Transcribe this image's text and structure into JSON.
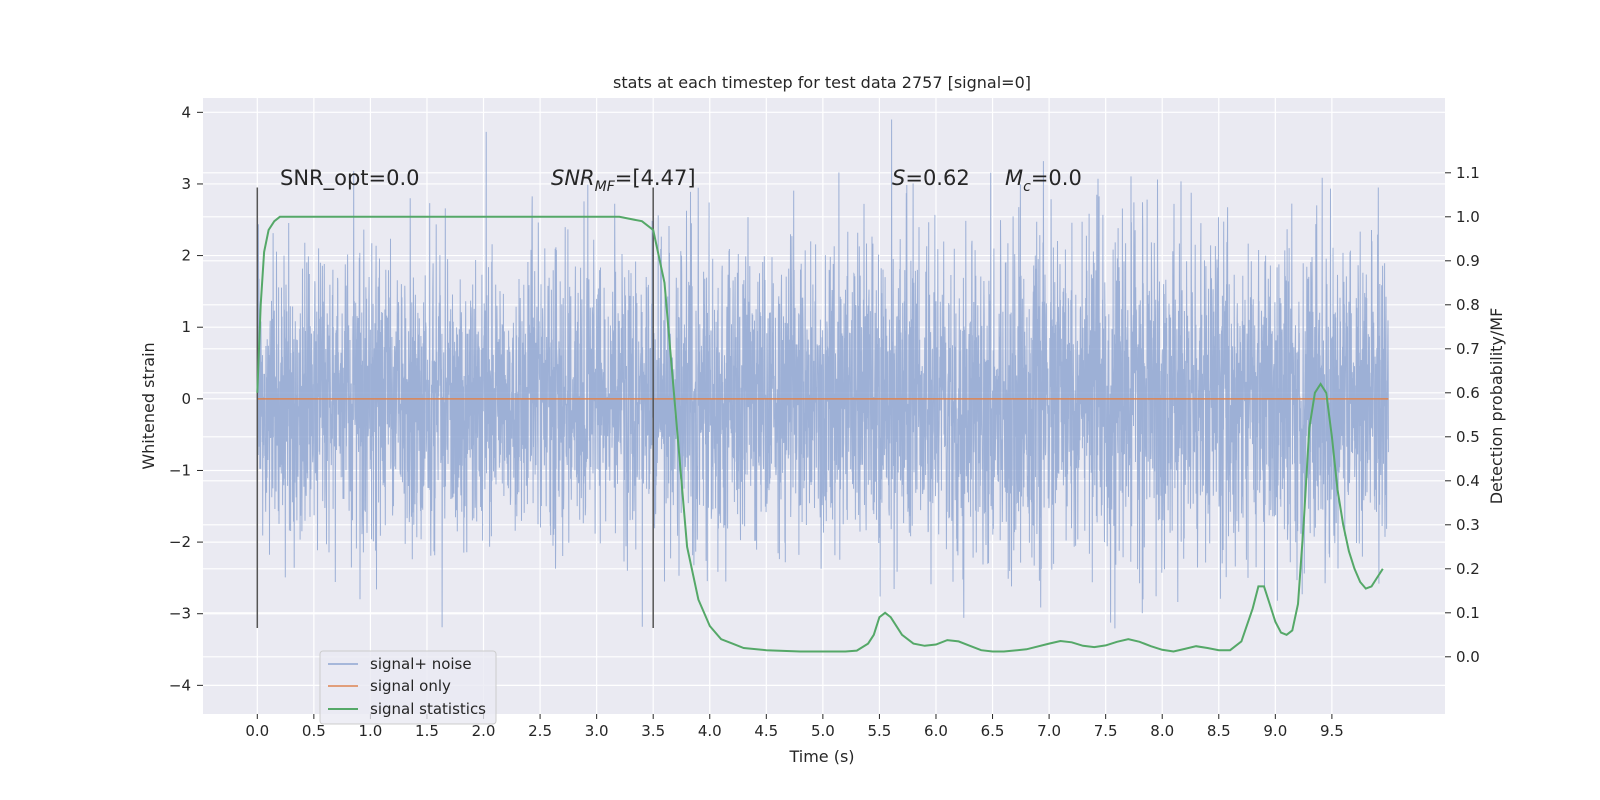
{
  "chart_data": {
    "type": "line",
    "title": "stats at each timestep for test data 2757 [signal=0]",
    "xlabel": "Time (s)",
    "ylabel": "Whitened strain",
    "y2label": "Detection probability/MF",
    "xlim": [
      -0.48,
      10.5
    ],
    "ylim": [
      -4.4,
      4.2
    ],
    "y2lim": [
      -0.13,
      1.27
    ],
    "xticks": [
      0.0,
      0.5,
      1.0,
      1.5,
      2.0,
      2.5,
      3.0,
      3.5,
      4.0,
      4.5,
      5.0,
      5.5,
      6.0,
      6.5,
      7.0,
      7.5,
      8.0,
      8.5,
      9.0,
      9.5
    ],
    "xtick_labels": [
      "0.0",
      "0.5",
      "1.0",
      "1.5",
      "2.0",
      "2.5",
      "3.0",
      "3.5",
      "4.0",
      "4.5",
      "5.0",
      "5.5",
      "6.0",
      "6.5",
      "7.0",
      "7.5",
      "8.0",
      "8.5",
      "9.0",
      "9.5"
    ],
    "yticks": [
      -4,
      -3,
      -2,
      -1,
      0,
      1,
      2,
      3,
      4
    ],
    "ytick_labels": [
      "−4",
      "−3",
      "−2",
      "−1",
      "0",
      "1",
      "2",
      "3",
      "4"
    ],
    "y2ticks": [
      0.0,
      0.1,
      0.2,
      0.3,
      0.4,
      0.5,
      0.6,
      0.7,
      0.8,
      0.9,
      1.0,
      1.1
    ],
    "y2tick_labels": [
      "0.0",
      "0.1",
      "0.2",
      "0.3",
      "0.4",
      "0.5",
      "0.6",
      "0.7",
      "0.8",
      "0.9",
      "1.0",
      "1.1"
    ],
    "grid": true,
    "legend_position": "bottom-left",
    "annotations": {
      "snr_opt": "SNR_opt=0.0",
      "snr_mf_main": "SNR",
      "snr_mf_sub": "MF",
      "snr_mf_value": "=[4.47]",
      "s_main": "S",
      "s_value": "=0.62",
      "mc_main": "M",
      "mc_sub": "c",
      "mc_value": "=0.0"
    },
    "vertical_markers": [
      {
        "x": 0.0,
        "y_range": [
          -3.2,
          2.95
        ]
      },
      {
        "x": 3.5,
        "y_range": [
          -3.2,
          2.95
        ]
      }
    ],
    "series": [
      {
        "name": "signal+ noise",
        "color": "#8fa6d1",
        "noise_envelope": {
          "x": [
            0.0,
            0.5,
            1.0,
            1.5,
            2.0,
            2.5,
            3.0,
            3.5,
            4.0,
            4.5,
            5.0,
            5.5,
            6.0,
            6.5,
            7.0,
            7.5,
            8.0,
            8.5,
            9.0,
            9.5,
            10.0
          ],
          "typical_abs": [
            1.7,
            1.8,
            1.8,
            1.8,
            1.8,
            1.8,
            1.8,
            1.8,
            1.9,
            1.9,
            1.9,
            1.9,
            2.0,
            2.0,
            2.0,
            2.0,
            2.0,
            2.0,
            2.0,
            2.0,
            1.8
          ]
        }
      },
      {
        "name": "signal only",
        "color": "#dd8452",
        "x": [
          0.0,
          10.0
        ],
        "y": [
          0.0,
          0.0
        ]
      },
      {
        "name": "signal statistics",
        "color": "#55a868",
        "axis": "right",
        "x": [
          0.0,
          0.03,
          0.06,
          0.1,
          0.15,
          0.2,
          0.3,
          1.0,
          2.0,
          3.0,
          3.2,
          3.4,
          3.5,
          3.6,
          3.7,
          3.8,
          3.9,
          4.0,
          4.1,
          4.2,
          4.3,
          4.5,
          4.8,
          5.0,
          5.2,
          5.3,
          5.4,
          5.45,
          5.5,
          5.55,
          5.6,
          5.7,
          5.8,
          5.9,
          6.0,
          6.1,
          6.2,
          6.3,
          6.4,
          6.5,
          6.6,
          6.8,
          7.0,
          7.1,
          7.2,
          7.3,
          7.4,
          7.5,
          7.6,
          7.7,
          7.8,
          7.9,
          8.0,
          8.1,
          8.2,
          8.3,
          8.4,
          8.5,
          8.6,
          8.7,
          8.8,
          8.85,
          8.9,
          8.95,
          9.0,
          9.05,
          9.1,
          9.15,
          9.2,
          9.25,
          9.3,
          9.35,
          9.4,
          9.45,
          9.5,
          9.55,
          9.6,
          9.65,
          9.7,
          9.75,
          9.8,
          9.85,
          9.9,
          9.95
        ],
        "y": [
          0.6,
          0.8,
          0.92,
          0.97,
          0.99,
          1.0,
          1.0,
          1.0,
          1.0,
          1.0,
          1.0,
          0.99,
          0.97,
          0.85,
          0.55,
          0.25,
          0.13,
          0.07,
          0.04,
          0.03,
          0.02,
          0.015,
          0.012,
          0.012,
          0.012,
          0.014,
          0.03,
          0.05,
          0.09,
          0.1,
          0.09,
          0.05,
          0.03,
          0.025,
          0.028,
          0.038,
          0.035,
          0.025,
          0.015,
          0.012,
          0.012,
          0.017,
          0.03,
          0.036,
          0.033,
          0.025,
          0.022,
          0.026,
          0.034,
          0.04,
          0.034,
          0.024,
          0.016,
          0.012,
          0.018,
          0.024,
          0.02,
          0.015,
          0.015,
          0.035,
          0.11,
          0.16,
          0.16,
          0.12,
          0.08,
          0.055,
          0.05,
          0.06,
          0.12,
          0.3,
          0.52,
          0.6,
          0.62,
          0.6,
          0.5,
          0.38,
          0.3,
          0.24,
          0.2,
          0.17,
          0.155,
          0.16,
          0.18,
          0.2
        ]
      }
    ]
  }
}
